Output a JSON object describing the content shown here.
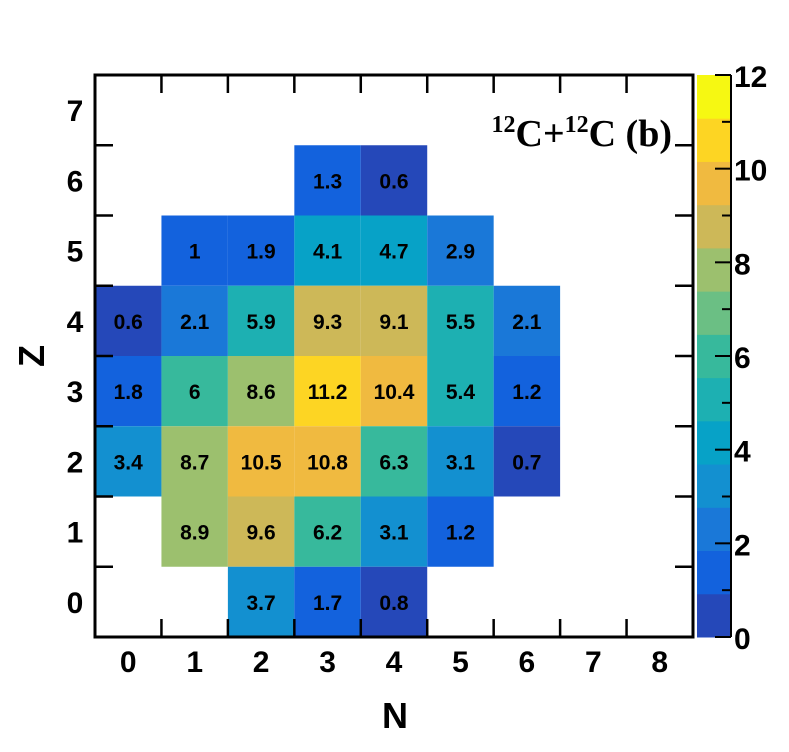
{
  "chart_data": {
    "type": "heatmap",
    "title": {
      "mass1": "12",
      "elem1": "C",
      "plus": "+",
      "mass2": "12",
      "elem2": "C",
      "tag": " (b)"
    },
    "xlabel": "N",
    "ylabel": "Z",
    "xlim": [
      -0.5,
      8.5
    ],
    "ylim": [
      -0.5,
      7.5
    ],
    "x_ticks": [
      "0",
      "1",
      "2",
      "3",
      "4",
      "5",
      "6",
      "7",
      "8"
    ],
    "y_ticks": [
      "0",
      "1",
      "2",
      "3",
      "4",
      "5",
      "6",
      "7"
    ],
    "grid": false,
    "colorbar": {
      "range": [
        0,
        12
      ],
      "levels": 12,
      "tick_labels": [
        "0",
        "2",
        "4",
        "6",
        "8",
        "10",
        "12"
      ],
      "colors": [
        "#2548B9",
        "#1362DD",
        "#1A78D8",
        "#1390D0",
        "#07A2C7",
        "#1DB0B2",
        "#37B99C",
        "#6BBF84",
        "#9CC06E",
        "#CDB858",
        "#F0BA40",
        "#FDD523",
        "#F6F812"
      ]
    },
    "cells": [
      {
        "n": 3,
        "z": 6,
        "value": 1.3,
        "label": "1.3"
      },
      {
        "n": 4,
        "z": 6,
        "value": 0.6,
        "label": "0.6"
      },
      {
        "n": 1,
        "z": 5,
        "value": 1,
        "label": "1"
      },
      {
        "n": 2,
        "z": 5,
        "value": 1.9,
        "label": "1.9"
      },
      {
        "n": 3,
        "z": 5,
        "value": 4.1,
        "label": "4.1"
      },
      {
        "n": 4,
        "z": 5,
        "value": 4.7,
        "label": "4.7"
      },
      {
        "n": 5,
        "z": 5,
        "value": 2.9,
        "label": "2.9"
      },
      {
        "n": 0,
        "z": 4,
        "value": 0.6,
        "label": "0.6"
      },
      {
        "n": 1,
        "z": 4,
        "value": 2.1,
        "label": "2.1"
      },
      {
        "n": 2,
        "z": 4,
        "value": 5.9,
        "label": "5.9"
      },
      {
        "n": 3,
        "z": 4,
        "value": 9.3,
        "label": "9.3"
      },
      {
        "n": 4,
        "z": 4,
        "value": 9.1,
        "label": "9.1"
      },
      {
        "n": 5,
        "z": 4,
        "value": 5.5,
        "label": "5.5"
      },
      {
        "n": 6,
        "z": 4,
        "value": 2.1,
        "label": "2.1"
      },
      {
        "n": 0,
        "z": 3,
        "value": 1.8,
        "label": "1.8"
      },
      {
        "n": 1,
        "z": 3,
        "value": 6,
        "label": "6"
      },
      {
        "n": 2,
        "z": 3,
        "value": 8.6,
        "label": "8.6"
      },
      {
        "n": 3,
        "z": 3,
        "value": 11.2,
        "label": "11.2"
      },
      {
        "n": 4,
        "z": 3,
        "value": 10.4,
        "label": "10.4"
      },
      {
        "n": 5,
        "z": 3,
        "value": 5.4,
        "label": "5.4"
      },
      {
        "n": 6,
        "z": 3,
        "value": 1.2,
        "label": "1.2"
      },
      {
        "n": 0,
        "z": 2,
        "value": 3.4,
        "label": "3.4"
      },
      {
        "n": 1,
        "z": 2,
        "value": 8.7,
        "label": "8.7"
      },
      {
        "n": 2,
        "z": 2,
        "value": 10.5,
        "label": "10.5"
      },
      {
        "n": 3,
        "z": 2,
        "value": 10.8,
        "label": "10.8"
      },
      {
        "n": 4,
        "z": 2,
        "value": 6.3,
        "label": "6.3"
      },
      {
        "n": 5,
        "z": 2,
        "value": 3.1,
        "label": "3.1"
      },
      {
        "n": 6,
        "z": 2,
        "value": 0.7,
        "label": "0.7"
      },
      {
        "n": 1,
        "z": 1,
        "value": 8.9,
        "label": "8.9"
      },
      {
        "n": 2,
        "z": 1,
        "value": 9.6,
        "label": "9.6"
      },
      {
        "n": 3,
        "z": 1,
        "value": 6.2,
        "label": "6.2"
      },
      {
        "n": 4,
        "z": 1,
        "value": 3.1,
        "label": "3.1"
      },
      {
        "n": 5,
        "z": 1,
        "value": 1.2,
        "label": "1.2"
      },
      {
        "n": 2,
        "z": 0,
        "value": 3.7,
        "label": "3.7"
      },
      {
        "n": 3,
        "z": 0,
        "value": 1.7,
        "label": "1.7"
      },
      {
        "n": 4,
        "z": 0,
        "value": 0.8,
        "label": "0.8"
      }
    ]
  }
}
